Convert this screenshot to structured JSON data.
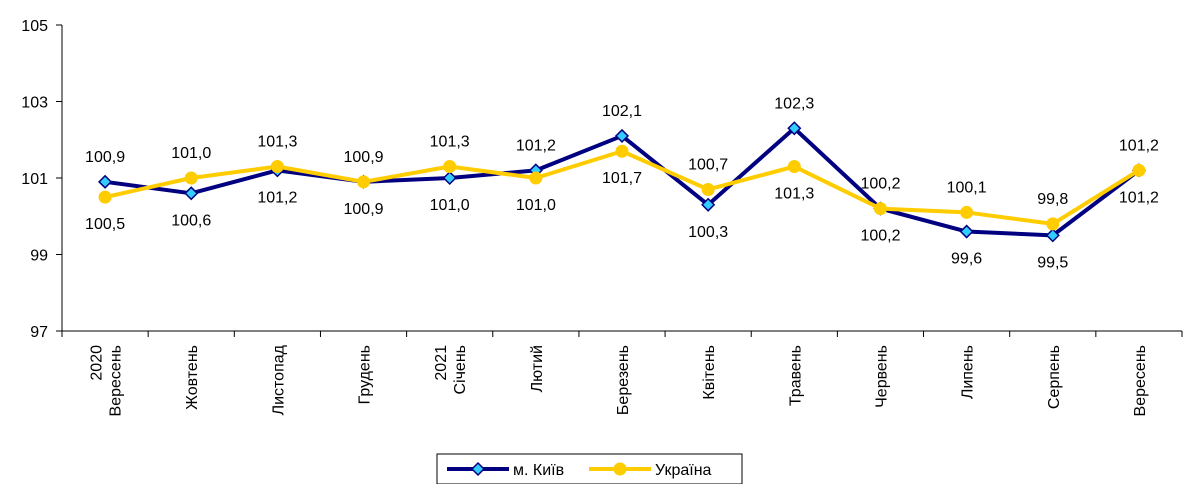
{
  "chart_data": {
    "type": "line",
    "categories": [
      [
        "2020",
        "Вересень"
      ],
      [
        "Жовтень"
      ],
      [
        "Листопад"
      ],
      [
        "Грудень"
      ],
      [
        "2021",
        "Січень"
      ],
      [
        "Лютий"
      ],
      [
        "Березень"
      ],
      [
        "Квітень"
      ],
      [
        "Травень"
      ],
      [
        "Червень"
      ],
      [
        "Липень"
      ],
      [
        "Серпень"
      ],
      [
        "Вересень"
      ]
    ],
    "series": [
      {
        "name": "м. Київ",
        "values": [
          100.9,
          100.6,
          101.2,
          100.9,
          101.0,
          101.2,
          102.1,
          100.3,
          102.3,
          100.2,
          99.6,
          99.5,
          101.2
        ],
        "labels": [
          "100,9",
          "100,6",
          "101,2",
          "100,9",
          "101,0",
          "101,2",
          "102,1",
          "100,3",
          "102,3",
          "100,2",
          "99,6",
          "99,5",
          "101,2"
        ],
        "label_pos": [
          "above",
          "below",
          "below",
          "above",
          "below",
          "above",
          "above",
          "below",
          "above",
          "below",
          "below",
          "below",
          "below"
        ],
        "color": "#000080",
        "marker_color": "#33CCFF"
      },
      {
        "name": "Україна",
        "values": [
          100.5,
          101.0,
          101.3,
          100.9,
          101.3,
          101.0,
          101.7,
          100.7,
          101.3,
          100.2,
          100.1,
          99.8,
          101.2
        ],
        "labels": [
          "100,5",
          "101,0",
          "101,3",
          "100,9",
          "101,3",
          "101,0",
          "101,7",
          "100,7",
          "101,3",
          "100,2",
          "100,1",
          "99,8",
          "101,2"
        ],
        "label_pos": [
          "below",
          "above",
          "above",
          "below",
          "above",
          "below",
          "below",
          "above",
          "below",
          "above",
          "above",
          "above",
          "above"
        ],
        "color": "#FFCC00",
        "marker_color": "#FFCC00"
      }
    ],
    "ylim": [
      97,
      105
    ],
    "yticks": [
      "97",
      "99",
      "101",
      "103",
      "105"
    ],
    "ytick_values": [
      97,
      99,
      101,
      103,
      105
    ],
    "grid": false,
    "legend": "bottom"
  }
}
